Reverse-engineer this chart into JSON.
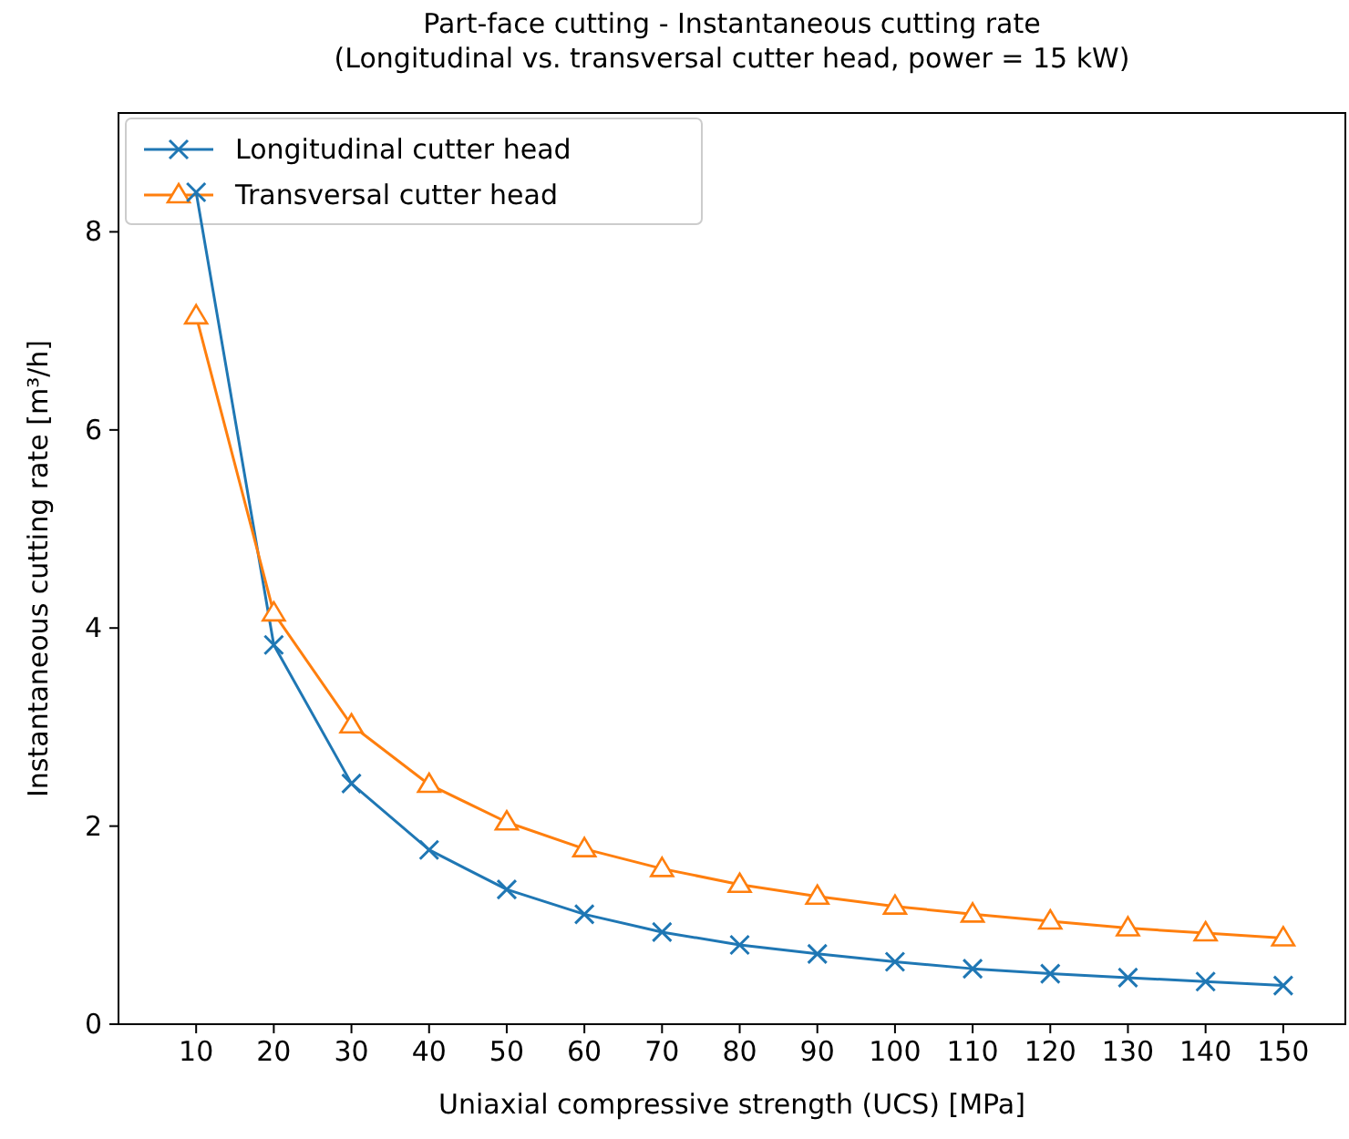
{
  "chart_data": {
    "type": "line",
    "title": "Part-face cutting - Instantaneous cutting rate\n(Longitudinal vs. transversal cutter head, power = 15 kW)",
    "xlabel": "Uniaxial compressive strength (UCS) [MPa]",
    "ylabel": "Instantaneous cutting rate [m³/h]",
    "x": [
      10,
      20,
      30,
      40,
      50,
      60,
      70,
      80,
      90,
      100,
      110,
      120,
      130,
      140,
      150
    ],
    "series": [
      {
        "name": "Longitudinal cutter head",
        "color": "#1f77b4",
        "marker": "cross",
        "values": [
          8.4,
          3.83,
          2.43,
          1.76,
          1.36,
          1.11,
          0.93,
          0.8,
          0.71,
          0.63,
          0.56,
          0.51,
          0.47,
          0.43,
          0.39
        ]
      },
      {
        "name": "Transversal cutter head",
        "color": "#ff7f0e",
        "marker": "triangle",
        "values": [
          7.15,
          4.15,
          3.02,
          2.42,
          2.04,
          1.77,
          1.57,
          1.41,
          1.29,
          1.19,
          1.11,
          1.04,
          0.97,
          0.92,
          0.87
        ]
      }
    ],
    "xlim": [
      0,
      158
    ],
    "ylim": [
      0,
      9.2
    ],
    "xticks": [
      10,
      20,
      30,
      40,
      50,
      60,
      70,
      80,
      90,
      100,
      110,
      120,
      130,
      140,
      150
    ],
    "yticks": [
      0,
      2,
      4,
      6,
      8
    ],
    "grid": false,
    "legend": "top left"
  }
}
